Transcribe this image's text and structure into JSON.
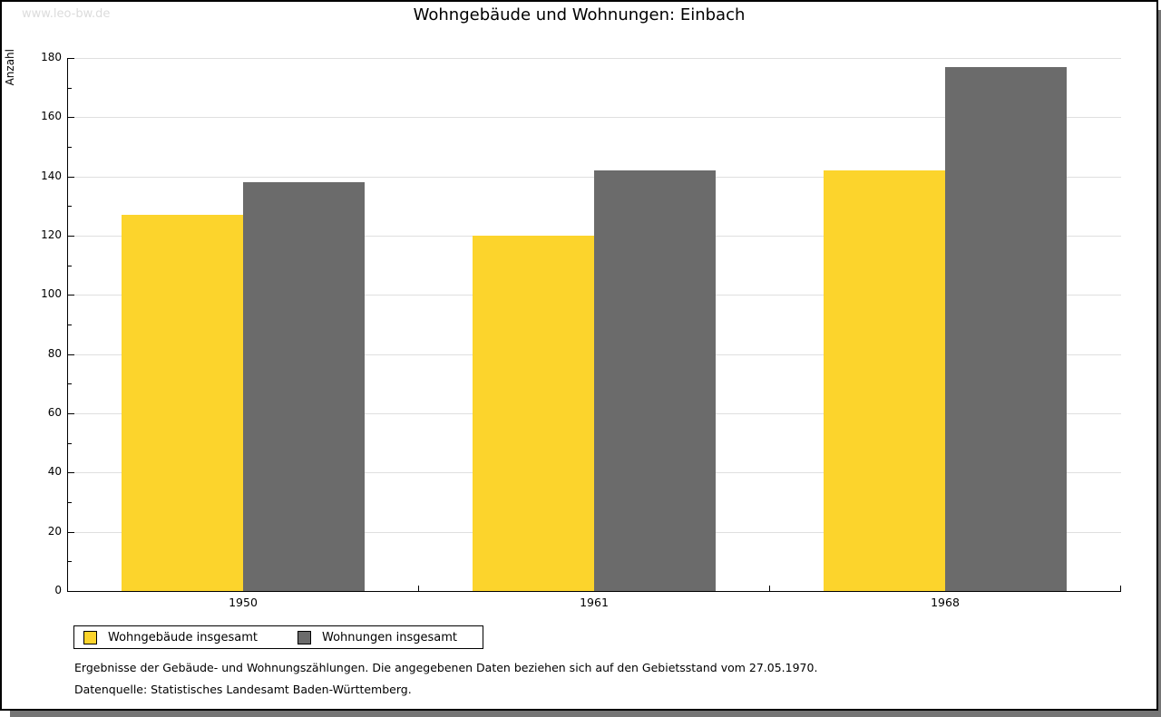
{
  "watermark": "www.leo-bw.de",
  "title": "Wohngebäude und Wohnungen: Einbach",
  "footer": {
    "line1": "Ergebnisse der Gebäude- und Wohnungszählungen. Die angegebenen Daten beziehen sich auf den Gebietsstand vom 27.05.1970.",
    "line2": "Datenquelle: Statistisches Landesamt Baden-Württemberg."
  },
  "colors": {
    "bar_yellow": "#FCD42C",
    "bar_gray": "#6B6B6B",
    "gridline": "#DFDFDF",
    "axis": "#000000",
    "watermark": "#DCDCDC",
    "page_shadow": "#757575"
  },
  "chart_data": {
    "type": "bar",
    "title": "Wohngebäude und Wohnungen: Einbach",
    "categories": [
      "1950",
      "1961",
      "1968"
    ],
    "series": [
      {
        "name": "Wohngebäude insgesamt",
        "color": "#FCD42C",
        "values": [
          127,
          120,
          142
        ]
      },
      {
        "name": "Wohnungen insgesamt",
        "color": "#6B6B6B",
        "values": [
          138,
          142,
          177
        ]
      }
    ],
    "xlabel": "",
    "ylabel": "Anzahl",
    "ylim": [
      0,
      180
    ],
    "ytick_major_step": 20,
    "ytick_minor_step": 10,
    "grid": true,
    "legend_position": "bottom-left"
  }
}
